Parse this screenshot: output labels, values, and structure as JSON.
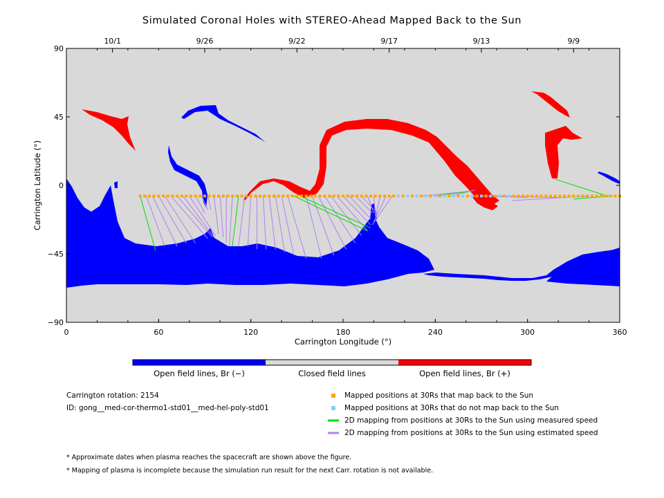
{
  "chart_data": {
    "type": "scatter",
    "title": "Simulated Coronal Holes with STEREO-Ahead Mapped Back to the Sun",
    "xlabel": "Carrington Longitude (°)",
    "ylabel": "Carrington Latitude (°)",
    "xlim": [
      0,
      360
    ],
    "ylim": [
      -90,
      90
    ],
    "xticks": [
      0,
      60,
      120,
      180,
      240,
      300,
      360
    ],
    "yticks": [
      90,
      45,
      0,
      -45,
      -90
    ],
    "ytick_labels": [
      "90",
      "45",
      "0",
      "−45",
      "−90"
    ],
    "top_axis_dates": [
      {
        "lon": 30,
        "label": "10/1"
      },
      {
        "lon": 90,
        "label": "9/26"
      },
      {
        "lon": 150,
        "label": "9/22"
      },
      {
        "lon": 210,
        "label": "9/17"
      },
      {
        "lon": 270,
        "label": "9/13"
      },
      {
        "lon": 330,
        "label": "9/9"
      }
    ],
    "colors": {
      "closed": "#d9d9d9",
      "open_neg": "#0000ff",
      "open_pos": "#ff0000",
      "mapped_back": "#ffa500",
      "not_mapped": "#87cefa",
      "measured": "#00dd00",
      "estimated": "#b07fef"
    },
    "colorbar": [
      {
        "label": "Open field lines, Br (−)",
        "color": "#0000ff"
      },
      {
        "label": "Closed field lines",
        "color": "#d9d9d9"
      },
      {
        "label": "Open field lines, Br (+)",
        "color": "#ff0000"
      }
    ],
    "spacecraft_track": {
      "lat": -7,
      "lon_range": [
        48,
        360
      ],
      "not_mapped_lon_range": [
        215,
        290
      ]
    },
    "mapping_lines": {
      "measured": [
        {
          "from": [
            48,
            -7
          ],
          "to": [
            58,
            -43
          ]
        },
        {
          "from": [
            112,
            -7
          ],
          "to": [
            108,
            -40
          ]
        },
        {
          "from": [
            148,
            -7
          ],
          "to": [
            196,
            -30
          ]
        },
        {
          "from": [
            152,
            -7
          ],
          "to": [
            198,
            -28
          ]
        },
        {
          "from": [
            240,
            -7
          ],
          "to": [
            262,
            -4
          ]
        },
        {
          "from": [
            318,
            4
          ],
          "to": [
            352,
            -7
          ]
        },
        {
          "from": [
            330,
            -9
          ],
          "to": [
            355,
            -7
          ]
        }
      ],
      "estimated": [
        {
          "from": [
            52,
            -7
          ],
          "to": [
            64,
            -40
          ]
        },
        {
          "from": [
            56,
            -7
          ],
          "to": [
            72,
            -40
          ]
        },
        {
          "from": [
            60,
            -7
          ],
          "to": [
            78,
            -38
          ]
        },
        {
          "from": [
            64,
            -7
          ],
          "to": [
            84,
            -38
          ]
        },
        {
          "from": [
            68,
            -7
          ],
          "to": [
            92,
            -35
          ]
        },
        {
          "from": [
            72,
            -7
          ],
          "to": [
            95,
            -34
          ]
        },
        {
          "from": [
            76,
            -7
          ],
          "to": [
            96,
            -34
          ]
        },
        {
          "from": [
            80,
            -7
          ],
          "to": [
            97,
            -33
          ]
        },
        {
          "from": [
            84,
            -7
          ],
          "to": [
            90,
            -18
          ]
        },
        {
          "from": [
            88,
            -7
          ],
          "to": [
            92,
            -16
          ]
        },
        {
          "from": [
            92,
            -7
          ],
          "to": [
            94,
            -16
          ]
        },
        {
          "from": [
            96,
            -7
          ],
          "to": [
            99,
            -32
          ]
        },
        {
          "from": [
            100,
            -7
          ],
          "to": [
            102,
            -34
          ]
        },
        {
          "from": [
            104,
            -7
          ],
          "to": [
            104,
            -38
          ]
        },
        {
          "from": [
            108,
            -7
          ],
          "to": [
            106,
            -40
          ]
        },
        {
          "from": [
            116,
            -7
          ],
          "to": [
            112,
            -40
          ]
        },
        {
          "from": [
            120,
            -7
          ],
          "to": [
            118,
            -40
          ]
        },
        {
          "from": [
            124,
            -7
          ],
          "to": [
            124,
            -42
          ]
        },
        {
          "from": [
            128,
            -7
          ],
          "to": [
            130,
            -42
          ]
        },
        {
          "from": [
            132,
            -7
          ],
          "to": [
            136,
            -42
          ]
        },
        {
          "from": [
            136,
            -7
          ],
          "to": [
            142,
            -44
          ]
        },
        {
          "from": [
            140,
            -7
          ],
          "to": [
            148,
            -46
          ]
        },
        {
          "from": [
            144,
            -7
          ],
          "to": [
            156,
            -48
          ]
        },
        {
          "from": [
            156,
            -7
          ],
          "to": [
            166,
            -48
          ]
        },
        {
          "from": [
            160,
            -7
          ],
          "to": [
            174,
            -46
          ]
        },
        {
          "from": [
            164,
            -7
          ],
          "to": [
            182,
            -42
          ]
        },
        {
          "from": [
            168,
            -7
          ],
          "to": [
            188,
            -38
          ]
        },
        {
          "from": [
            172,
            -7
          ],
          "to": [
            192,
            -33
          ]
        },
        {
          "from": [
            176,
            -7
          ],
          "to": [
            196,
            -30
          ]
        },
        {
          "from": [
            180,
            -7
          ],
          "to": [
            198,
            -26
          ]
        },
        {
          "from": [
            184,
            -7
          ],
          "to": [
            198,
            -22
          ]
        },
        {
          "from": [
            188,
            -7
          ],
          "to": [
            199,
            -18
          ]
        },
        {
          "from": [
            192,
            -7
          ],
          "to": [
            200,
            -16
          ]
        },
        {
          "from": [
            196,
            -7
          ],
          "to": [
            200,
            -18
          ]
        },
        {
          "from": [
            200,
            -7
          ],
          "to": [
            201,
            -20
          ]
        },
        {
          "from": [
            204,
            -7
          ],
          "to": [
            201,
            -22
          ]
        },
        {
          "from": [
            208,
            -7
          ],
          "to": [
            200,
            -24
          ]
        },
        {
          "from": [
            212,
            -7
          ],
          "to": [
            199,
            -26
          ]
        },
        {
          "from": [
            230,
            -7
          ],
          "to": [
            262,
            -4
          ]
        },
        {
          "from": [
            250,
            -7
          ],
          "to": [
            266,
            -3
          ]
        },
        {
          "from": [
            270,
            -7
          ],
          "to": [
            300,
            -8
          ]
        },
        {
          "from": [
            280,
            -7
          ],
          "to": [
            320,
            -8
          ]
        },
        {
          "from": [
            290,
            -10
          ],
          "to": [
            340,
            -7
          ]
        }
      ]
    }
  },
  "info": {
    "rotation": "Carrington rotation: 2154",
    "id": "ID: gong__med-cor-thermo1-std01__med-hel-poly-std01"
  },
  "legend": {
    "mapped_back": "Mapped positions at 30Rs that map back to the Sun",
    "not_mapped": "Mapped positions at 30Rs that do not map back to the Sun",
    "measured": "2D mapping from positions at 30Rs to the Sun using measured speed",
    "estimated": "2D mapping from positions at 30Rs to the Sun using estimated speed"
  },
  "notes": {
    "dates": "* Approximate dates when plasma reaches the spacecraft are shown above the figure.",
    "incomplete": "* Mapping of plasma is incomplete because the simulation run result for the next Carr. rotation is not available."
  }
}
